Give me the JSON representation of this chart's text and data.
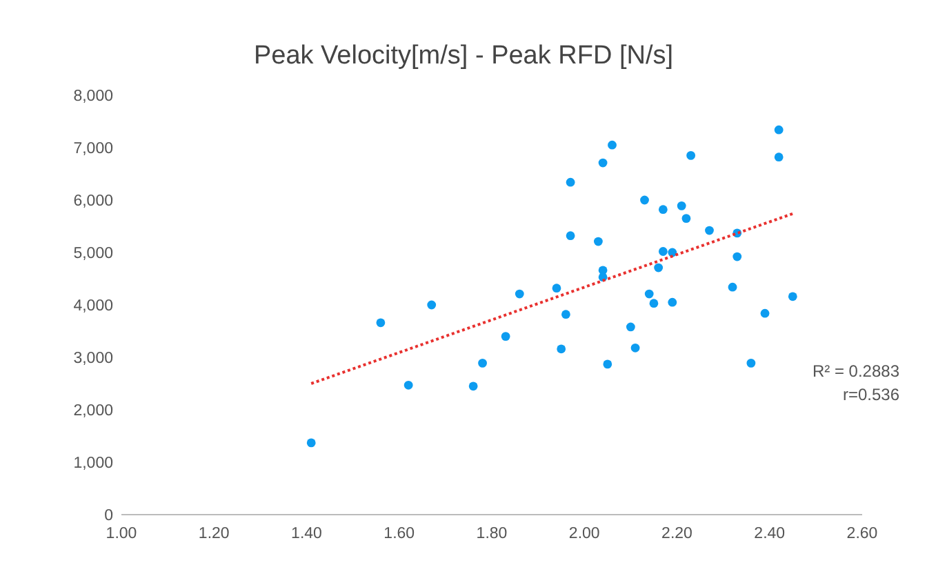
{
  "chart_data": {
    "type": "scatter",
    "title": "Peak Velocity[m/s] - Peak RFD [N/s]",
    "xlim": [
      1,
      2.6
    ],
    "xticks": [
      {
        "value": 1,
        "label": "1.00"
      },
      {
        "value": 1.2,
        "label": "1.20"
      },
      {
        "value": 1.4,
        "label": "1.40"
      },
      {
        "value": 1.6,
        "label": "1.60"
      },
      {
        "value": 1.8,
        "label": "1.80"
      },
      {
        "value": 2,
        "label": "2.00"
      },
      {
        "value": 2.2,
        "label": "2.20"
      },
      {
        "value": 2.4,
        "label": "2.40"
      },
      {
        "value": 2.6,
        "label": "2.60"
      }
    ],
    "ylim": [
      0,
      8000
    ],
    "yticks": [
      {
        "value": 0,
        "label": "0"
      },
      {
        "value": 1000,
        "label": "1,000"
      },
      {
        "value": 2000,
        "label": "2,000"
      },
      {
        "value": 3000,
        "label": "3,000"
      },
      {
        "value": 4000,
        "label": "4,000"
      },
      {
        "value": 5000,
        "label": "5,000"
      },
      {
        "value": 6000,
        "label": "6,000"
      },
      {
        "value": 7000,
        "label": "7,000"
      },
      {
        "value": 8000,
        "label": "8,000"
      }
    ],
    "grid": false,
    "marker": "circle",
    "series": [
      {
        "color": "#0d9cf0",
        "x": [
          1.41,
          1.56,
          1.62,
          1.67,
          1.76,
          1.78,
          1.83,
          1.86,
          1.94,
          1.95,
          1.96,
          1.97,
          1.97,
          2.03,
          2.04,
          2.06,
          2.04,
          2.04,
          2.05,
          2.1,
          2.11,
          2.13,
          2.14,
          2.15,
          2.16,
          2.17,
          2.17,
          2.19,
          2.19,
          2.21,
          2.22,
          2.23,
          2.27,
          2.33,
          2.33,
          2.32,
          2.39,
          2.45,
          2.36,
          2.42,
          2.42
        ],
        "values": [
          1370,
          3660,
          2470,
          4000,
          2450,
          2890,
          3400,
          4210,
          4320,
          3160,
          3820,
          6340,
          5320,
          5210,
          6710,
          7050,
          4660,
          4530,
          2870,
          3580,
          3180,
          6000,
          4210,
          4030,
          4710,
          5820,
          5020,
          5000,
          4050,
          5890,
          5650,
          6850,
          5420,
          5370,
          4920,
          4340,
          3840,
          4160,
          2890,
          7340,
          6820
        ]
      },
      {
        "type": "line",
        "color": "#e8312f",
        "line_style": "dotted",
        "marker": "none",
        "x": [
          1.41,
          2.45
        ],
        "values": [
          2500,
          5740
        ]
      }
    ],
    "annotations": [
      {
        "text": "R² = 0.2883"
      },
      {
        "text": "r=0.536"
      }
    ]
  }
}
